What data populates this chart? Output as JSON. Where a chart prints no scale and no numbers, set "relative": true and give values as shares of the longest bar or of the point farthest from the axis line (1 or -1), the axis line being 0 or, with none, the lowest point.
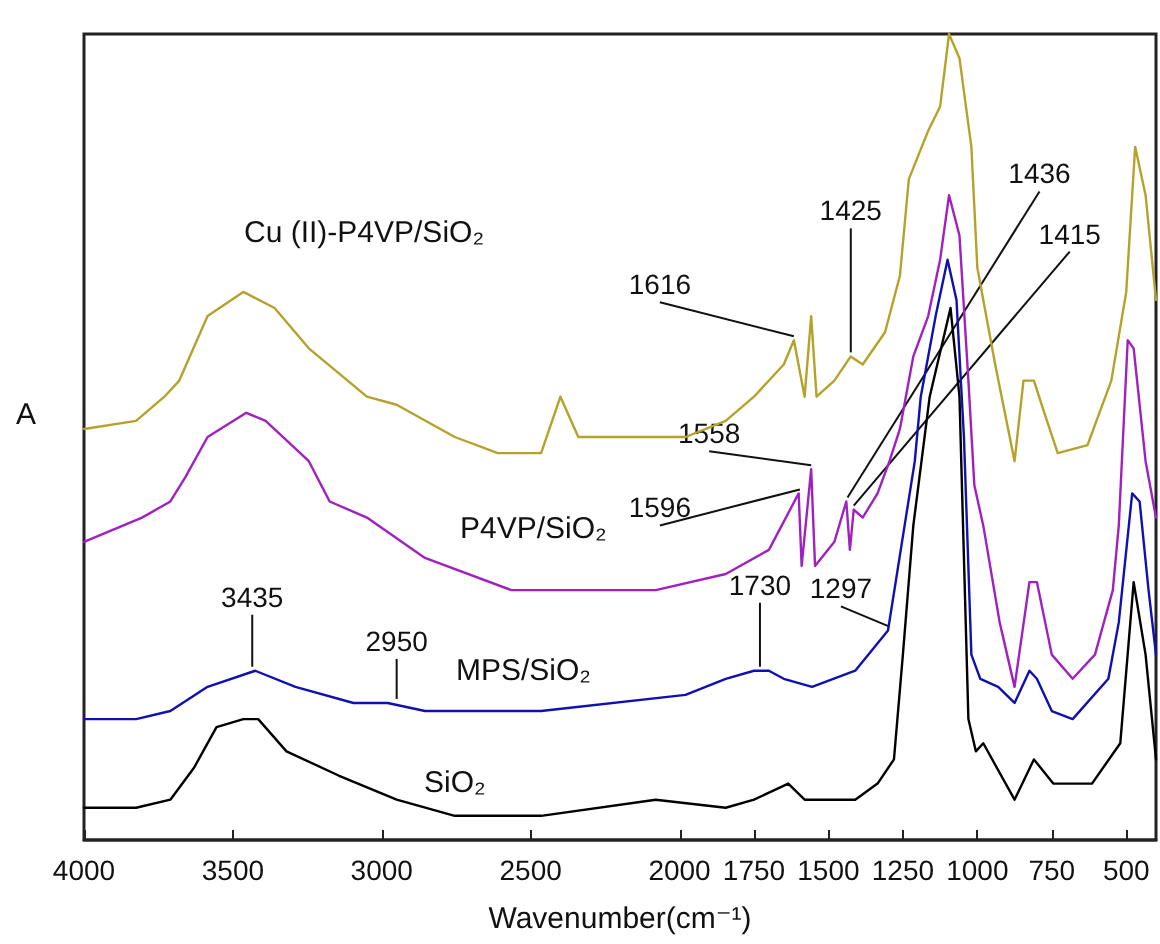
{
  "chart_data": {
    "type": "line",
    "relative": true,
    "xlabel": "Wavenumber(cm⁻¹)",
    "ylabel": "A",
    "xlim": [
      4000,
      400
    ],
    "xticks": [
      4000,
      3500,
      3000,
      2500,
      2000,
      1750,
      1500,
      1250,
      1000,
      750,
      500
    ],
    "legend": false,
    "grid": false,
    "marker": "none",
    "line_style": "solid",
    "series": [
      {
        "name": "Cu (II)-P4VP/SiO₂",
        "color": "#b5a22a",
        "x": [
          4000,
          3825,
          3730,
          3680,
          3585,
          3465,
          3360,
          3245,
          3050,
          2950,
          2755,
          2610,
          2465,
          2400,
          2340,
          1980,
          1845,
          1750,
          1650,
          1616,
          1580,
          1558,
          1540,
          1480,
          1425,
          1385,
          1310,
          1260,
          1230,
          1165,
          1125,
          1095,
          1060,
          1020,
          1000,
          940,
          875,
          845,
          810,
          775,
          730,
          630,
          550,
          500,
          470,
          435,
          400
        ],
        "values": [
          0.51,
          0.52,
          0.55,
          0.57,
          0.65,
          0.68,
          0.66,
          0.61,
          0.55,
          0.54,
          0.5,
          0.48,
          0.48,
          0.55,
          0.5,
          0.5,
          0.52,
          0.55,
          0.59,
          0.62,
          0.55,
          0.65,
          0.55,
          0.57,
          0.6,
          0.59,
          0.63,
          0.7,
          0.82,
          0.88,
          0.91,
          1.0,
          0.97,
          0.86,
          0.71,
          0.59,
          0.47,
          0.57,
          0.57,
          0.53,
          0.48,
          0.49,
          0.57,
          0.68,
          0.86,
          0.8,
          0.67
        ]
      },
      {
        "name": "P4VP/SiO₂",
        "color": "#a020c0",
        "x": [
          4000,
          3805,
          3710,
          3660,
          3585,
          3455,
          3390,
          3245,
          3175,
          3050,
          2855,
          2565,
          2080,
          1845,
          1700,
          1600,
          1590,
          1558,
          1545,
          1480,
          1440,
          1428,
          1415,
          1385,
          1335,
          1295,
          1260,
          1215,
          1165,
          1125,
          1095,
          1060,
          1030,
          1010,
          980,
          925,
          875,
          825,
          800,
          750,
          680,
          605,
          545,
          525,
          495,
          475,
          435,
          400
        ],
        "values": [
          0.37,
          0.4,
          0.42,
          0.45,
          0.5,
          0.53,
          0.52,
          0.47,
          0.42,
          0.4,
          0.35,
          0.31,
          0.31,
          0.33,
          0.36,
          0.43,
          0.34,
          0.46,
          0.34,
          0.37,
          0.42,
          0.36,
          0.41,
          0.4,
          0.43,
          0.47,
          0.51,
          0.6,
          0.65,
          0.72,
          0.8,
          0.75,
          0.57,
          0.44,
          0.39,
          0.27,
          0.19,
          0.32,
          0.32,
          0.23,
          0.2,
          0.23,
          0.31,
          0.39,
          0.62,
          0.61,
          0.47,
          0.4
        ]
      },
      {
        "name": "MPS/SiO₂",
        "color": "#1010b0",
        "x": [
          4000,
          3825,
          3710,
          3585,
          3425,
          3290,
          3095,
          2980,
          2855,
          2465,
          1980,
          1845,
          1750,
          1700,
          1650,
          1555,
          1410,
          1300,
          1240,
          1210,
          1190,
          1140,
          1100,
          1070,
          1045,
          1020,
          990,
          930,
          875,
          825,
          800,
          750,
          680,
          560,
          525,
          480,
          455,
          425,
          400
        ],
        "values": [
          0.15,
          0.15,
          0.16,
          0.19,
          0.21,
          0.19,
          0.17,
          0.17,
          0.16,
          0.16,
          0.18,
          0.2,
          0.21,
          0.21,
          0.2,
          0.19,
          0.21,
          0.26,
          0.4,
          0.47,
          0.55,
          0.65,
          0.72,
          0.67,
          0.5,
          0.23,
          0.2,
          0.19,
          0.17,
          0.21,
          0.2,
          0.16,
          0.15,
          0.2,
          0.27,
          0.43,
          0.42,
          0.31,
          0.23
        ]
      },
      {
        "name": "SiO₂",
        "color": "#000000",
        "x": [
          4000,
          3825,
          3710,
          3630,
          3555,
          3465,
          3415,
          3320,
          3145,
          2950,
          2755,
          2465,
          2080,
          1845,
          1750,
          1635,
          1580,
          1410,
          1335,
          1280,
          1250,
          1215,
          1160,
          1090,
          1060,
          1030,
          1005,
          980,
          875,
          810,
          745,
          615,
          520,
          475,
          435,
          400
        ],
        "values": [
          0.04,
          0.04,
          0.05,
          0.09,
          0.14,
          0.15,
          0.15,
          0.11,
          0.08,
          0.05,
          0.03,
          0.03,
          0.05,
          0.04,
          0.05,
          0.07,
          0.05,
          0.05,
          0.07,
          0.1,
          0.23,
          0.39,
          0.55,
          0.66,
          0.55,
          0.15,
          0.11,
          0.12,
          0.05,
          0.1,
          0.07,
          0.07,
          0.12,
          0.32,
          0.23,
          0.1
        ]
      }
    ],
    "annotations": [
      {
        "text": "3435",
        "x": 3435,
        "y": 0.21
      },
      {
        "text": "2950",
        "x": 2950,
        "y": 0.17
      },
      {
        "text": "1730",
        "x": 1730,
        "y": 0.21
      },
      {
        "text": "1297",
        "x": 1297,
        "y": 0.26
      },
      {
        "text": "1596",
        "x": 1596,
        "y": 0.43
      },
      {
        "text": "1558",
        "x": 1558,
        "y": 0.46
      },
      {
        "text": "1616",
        "x": 1616,
        "y": 0.62
      },
      {
        "text": "1425",
        "x": 1425,
        "y": 0.6
      },
      {
        "text": "1436",
        "x": 1436,
        "y": 0.42
      },
      {
        "text": "1415",
        "x": 1415,
        "y": 0.41
      }
    ]
  }
}
